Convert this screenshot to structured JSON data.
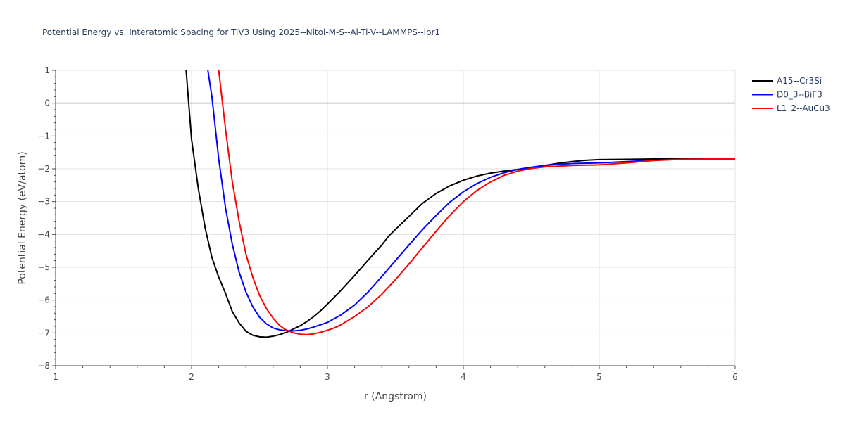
{
  "chart_data": {
    "type": "line",
    "title": "Potential Energy vs. Interatomic Spacing for TiV3 Using 2025--Nitol-M-S--Al-Ti-V--LAMMPS--ipr1",
    "xlabel": "r (Angstrom)",
    "ylabel": "Potential Energy (eV/atom)",
    "xlim": [
      1,
      6
    ],
    "ylim": [
      -8,
      1
    ],
    "xticks": [
      1,
      2,
      3,
      4,
      5,
      6
    ],
    "xtick_labels": [
      "1",
      "2",
      "3",
      "4",
      "5",
      "6"
    ],
    "yticks": [
      1,
      0,
      -1,
      -2,
      -3,
      -4,
      -5,
      -6,
      -7,
      -8
    ],
    "ytick_labels": [
      "1",
      "0",
      "−1",
      "−2",
      "−3",
      "−4",
      "−5",
      "−6",
      "−7",
      "−8"
    ],
    "grid": true,
    "legend_position": "top-right",
    "series": [
      {
        "name": "A15--Cr3Si",
        "color": "#000000",
        "x": [
          1.96,
          2.0,
          2.05,
          2.1,
          2.15,
          2.2,
          2.25,
          2.3,
          2.35,
          2.4,
          2.45,
          2.5,
          2.55,
          2.6,
          2.65,
          2.7,
          2.75,
          2.8,
          2.85,
          2.9,
          2.95,
          3.0,
          3.1,
          3.2,
          3.3,
          3.4,
          3.45,
          3.5,
          3.6,
          3.7,
          3.8,
          3.9,
          4.0,
          4.1,
          4.2,
          4.3,
          4.4,
          4.5,
          4.6,
          4.7,
          4.8,
          4.9,
          5.0,
          5.2,
          5.4,
          5.6,
          5.8,
          6.0
        ],
        "y": [
          1.0,
          -1.1,
          -2.6,
          -3.8,
          -4.7,
          -5.3,
          -5.8,
          -6.35,
          -6.7,
          -6.95,
          -7.07,
          -7.12,
          -7.13,
          -7.1,
          -7.05,
          -6.98,
          -6.88,
          -6.78,
          -6.65,
          -6.5,
          -6.32,
          -6.12,
          -5.7,
          -5.25,
          -4.78,
          -4.32,
          -4.05,
          -3.85,
          -3.45,
          -3.05,
          -2.75,
          -2.52,
          -2.35,
          -2.22,
          -2.13,
          -2.07,
          -2.02,
          -1.96,
          -1.9,
          -1.83,
          -1.78,
          -1.74,
          -1.72,
          -1.71,
          -1.7,
          -1.7,
          -1.7,
          -1.7
        ]
      },
      {
        "name": "D0_3--BiF3",
        "color": "#0000ff",
        "x": [
          2.12,
          2.15,
          2.2,
          2.25,
          2.3,
          2.35,
          2.4,
          2.45,
          2.5,
          2.55,
          2.6,
          2.65,
          2.7,
          2.75,
          2.8,
          2.85,
          2.9,
          3.0,
          3.1,
          3.2,
          3.3,
          3.4,
          3.5,
          3.6,
          3.7,
          3.8,
          3.9,
          4.0,
          4.1,
          4.2,
          4.3,
          4.4,
          4.5,
          4.6,
          4.7,
          4.8,
          5.0,
          5.2,
          5.4,
          5.6,
          5.8,
          6.0
        ],
        "y": [
          1.0,
          0.2,
          -1.7,
          -3.2,
          -4.3,
          -5.15,
          -5.75,
          -6.2,
          -6.52,
          -6.72,
          -6.85,
          -6.91,
          -6.93,
          -6.94,
          -6.92,
          -6.88,
          -6.82,
          -6.68,
          -6.45,
          -6.15,
          -5.75,
          -5.28,
          -4.8,
          -4.32,
          -3.85,
          -3.42,
          -3.02,
          -2.7,
          -2.45,
          -2.26,
          -2.12,
          -2.02,
          -1.95,
          -1.9,
          -1.86,
          -1.84,
          -1.82,
          -1.78,
          -1.74,
          -1.71,
          -1.7,
          -1.7
        ]
      },
      {
        "name": "L1_2--AuCu3",
        "color": "#ff0000",
        "x": [
          2.2,
          2.25,
          2.3,
          2.35,
          2.4,
          2.45,
          2.5,
          2.55,
          2.6,
          2.65,
          2.7,
          2.75,
          2.8,
          2.85,
          2.9,
          2.95,
          3.0,
          3.05,
          3.1,
          3.2,
          3.3,
          3.4,
          3.5,
          3.6,
          3.7,
          3.8,
          3.9,
          4.0,
          4.1,
          4.2,
          4.3,
          4.4,
          4.5,
          4.6,
          4.8,
          5.0,
          5.2,
          5.4,
          5.6,
          5.8,
          6.0
        ],
        "y": [
          1.0,
          -0.8,
          -2.4,
          -3.6,
          -4.6,
          -5.3,
          -5.85,
          -6.25,
          -6.55,
          -6.78,
          -6.92,
          -7.0,
          -7.04,
          -7.05,
          -7.03,
          -6.98,
          -6.92,
          -6.85,
          -6.75,
          -6.5,
          -6.2,
          -5.82,
          -5.38,
          -4.9,
          -4.4,
          -3.9,
          -3.42,
          -3.0,
          -2.66,
          -2.4,
          -2.2,
          -2.07,
          -1.99,
          -1.94,
          -1.9,
          -1.88,
          -1.82,
          -1.75,
          -1.71,
          -1.7,
          -1.7
        ]
      }
    ]
  }
}
